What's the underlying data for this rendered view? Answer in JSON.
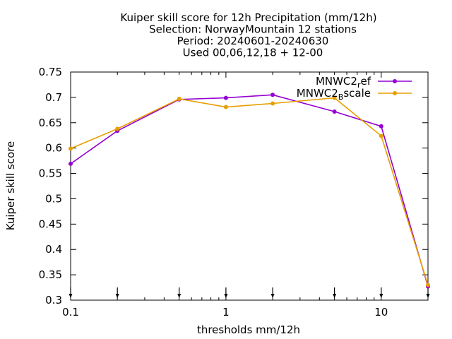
{
  "chart_data": {
    "type": "line",
    "title_lines": [
      "Kuiper skill score  for 12h Precipitation (mm/12h)",
      "Selection: NorwayMountain     12 stations",
      "Period: 20240601-20240630",
      "Used 00,06,12,18 + 12-00"
    ],
    "xlabel": "thresholds mm/12h",
    "ylabel": "Kuiper skill score",
    "x_scale": "log",
    "xlim": [
      0.1,
      20
    ],
    "ylim": [
      0.3,
      0.75
    ],
    "x_ticks": [
      {
        "value": 0.1,
        "label": "0.1"
      },
      {
        "value": 1,
        "label": "1"
      },
      {
        "value": 10,
        "label": "10"
      }
    ],
    "y_ticks": [
      {
        "value": 0.3,
        "label": "0.3"
      },
      {
        "value": 0.35,
        "label": "0.35"
      },
      {
        "value": 0.4,
        "label": "0.4"
      },
      {
        "value": 0.45,
        "label": "0.45"
      },
      {
        "value": 0.5,
        "label": "0.5"
      },
      {
        "value": 0.55,
        "label": "0.55"
      },
      {
        "value": 0.6,
        "label": "0.6"
      },
      {
        "value": 0.65,
        "label": "0.65"
      },
      {
        "value": 0.7,
        "label": "0.7"
      },
      {
        "value": 0.75,
        "label": "0.75"
      }
    ],
    "grid": false,
    "legend_position": "top-right",
    "threshold_arrows_x": [
      0.1,
      0.2,
      0.5,
      1,
      2,
      5,
      10,
      20
    ],
    "series": [
      {
        "name_base": "MNWC2",
        "name_sub": "r",
        "name_rest": "ef",
        "color": "#9400d3",
        "x": [
          0.1,
          0.2,
          0.5,
          1,
          2,
          5,
          10,
          20
        ],
        "y": [
          0.569,
          0.634,
          0.696,
          0.699,
          0.705,
          0.672,
          0.643,
          0.327
        ]
      },
      {
        "name_base": "MNWC2",
        "name_sub": "B",
        "name_rest": "scale",
        "color": "#e69f00",
        "x": [
          0.1,
          0.2,
          0.5,
          1,
          2,
          5,
          10,
          20
        ],
        "y": [
          0.599,
          0.638,
          0.697,
          0.681,
          0.688,
          0.699,
          0.624,
          0.33
        ]
      }
    ]
  }
}
